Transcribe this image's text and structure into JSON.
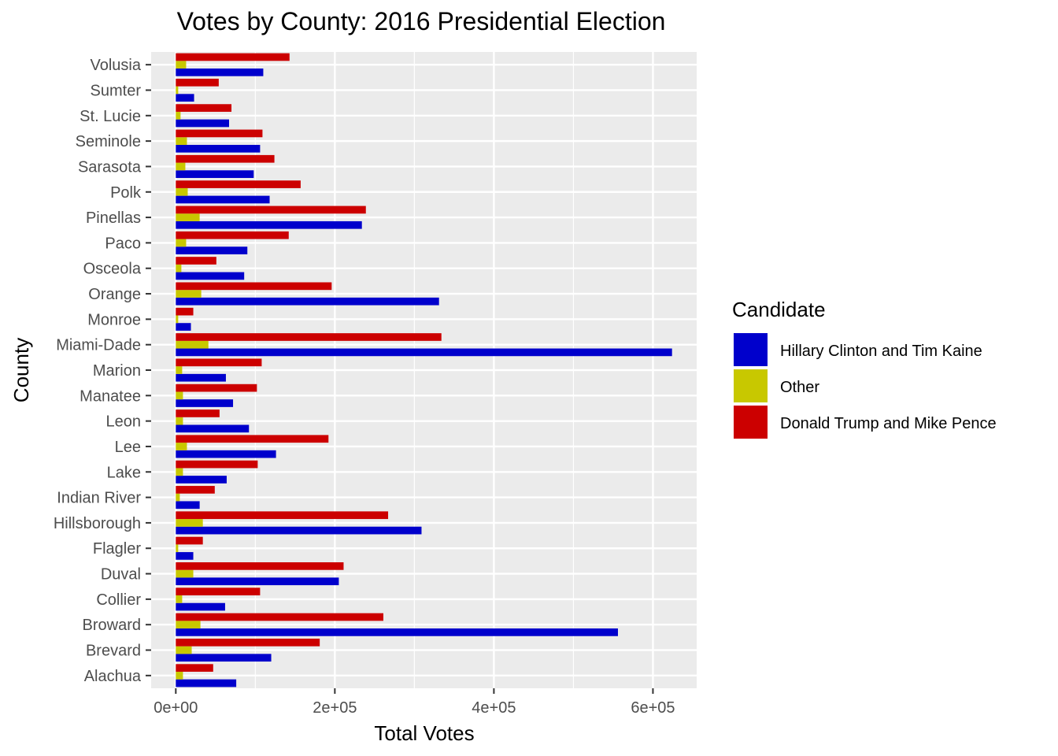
{
  "chart_data": {
    "type": "bar",
    "orientation": "horizontal",
    "title": "Votes by County: 2016 Presidential Election",
    "xlabel": "Total Votes",
    "ylabel": "County",
    "xlim": [
      -31000,
      655000
    ],
    "x_ticks": [
      0,
      200000,
      400000,
      600000
    ],
    "x_tick_labels": [
      "0e+00",
      "2e+05",
      "4e+05",
      "6e+05"
    ],
    "grid": true,
    "legend_position": "right",
    "legend_title": "Candidate",
    "categories": [
      "Alachua",
      "Brevard",
      "Broward",
      "Collier",
      "Duval",
      "Flagler",
      "Hillsborough",
      "Indian River",
      "Lake",
      "Lee",
      "Leon",
      "Manatee",
      "Marion",
      "Miami-Dade",
      "Monroe",
      "Orange",
      "Osceola",
      "Paco",
      "Pinellas",
      "Polk",
      "Sarasota",
      "Seminole",
      "St. Lucie",
      "Sumter",
      "Volusia"
    ],
    "series": [
      {
        "name": "Hillary Clinton and Tim Kaine",
        "color": "#0000CC",
        "values": [
          76000,
          120000,
          556000,
          62000,
          205000,
          22000,
          309000,
          30000,
          64000,
          126000,
          92000,
          72000,
          63000,
          624000,
          19000,
          331000,
          86000,
          90000,
          234000,
          118000,
          98000,
          106000,
          67000,
          23000,
          110000
        ]
      },
      {
        "name": "Other",
        "color": "#C8C800",
        "values": [
          9000,
          20000,
          31000,
          8000,
          22000,
          3000,
          34000,
          5000,
          9000,
          14000,
          9000,
          9000,
          8000,
          41000,
          3000,
          32000,
          7000,
          13000,
          30000,
          15000,
          12000,
          14000,
          6000,
          3000,
          13000
        ]
      },
      {
        "name": "Donald Trump and Mike Pence",
        "color": "#CC0000",
        "values": [
          47000,
          181000,
          261000,
          106000,
          211000,
          34000,
          267000,
          49000,
          103000,
          192000,
          55000,
          102000,
          108000,
          334000,
          22000,
          196000,
          51000,
          142000,
          239000,
          157000,
          124000,
          109000,
          70000,
          54000,
          143000
        ]
      }
    ]
  }
}
